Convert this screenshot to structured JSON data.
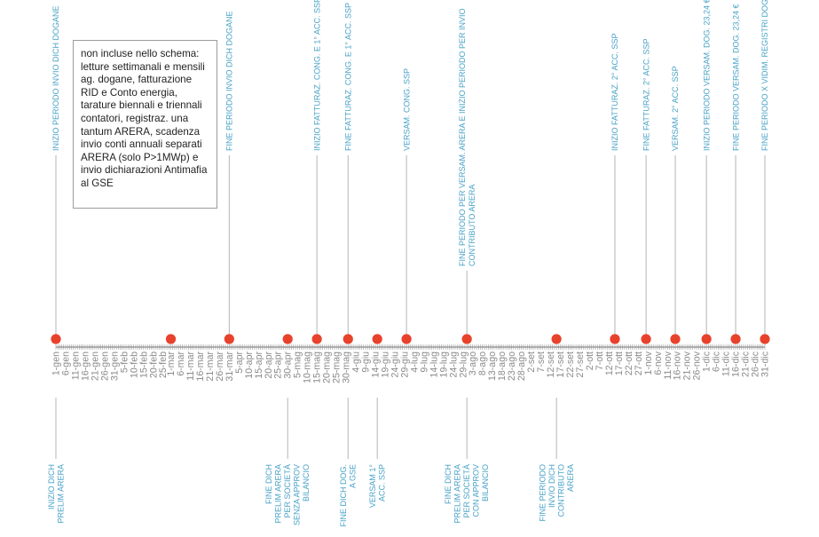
{
  "note": "non incluse nello schema: letture settimanali e mensili ag. dogane, fatturazione RID e Conto energia, tarature biennali e triennali contatori, registraz. una tantum ARERA, scadenza invio conti annuali separati ARERA (solo P>1MWp) e invio dichiarazioni Antimafia al GSE",
  "colors": {
    "axis": "#8a8a8a",
    "tick_label": "#8a8a8a",
    "event_label": "#4aa3c7",
    "connector": "#b5b5b5",
    "marker": "#e8422c",
    "note_border": "#9c9c9c"
  },
  "ticks": [
    "1-gen",
    "6-gen",
    "11-gen",
    "16-gen",
    "21-gen",
    "26-gen",
    "31-gen",
    "5-feb",
    "10-feb",
    "15-feb",
    "20-feb",
    "25-feb",
    "1-mar",
    "6-mar",
    "11-mar",
    "16-mar",
    "21-mar",
    "26-mar",
    "31-mar",
    "5-apr",
    "10-apr",
    "15-apr",
    "20-apr",
    "25-apr",
    "30-apr",
    "5-mag",
    "10-mag",
    "15-mag",
    "20-mag",
    "25-mag",
    "30-mag",
    "4-giu",
    "9-giu",
    "14-giu",
    "19-giu",
    "24-giu",
    "29-giu",
    "4-lug",
    "9-lug",
    "14-lug",
    "19-lug",
    "24-lug",
    "29-lug",
    "3-ago",
    "8-ago",
    "13-ago",
    "18-ago",
    "23-ago",
    "28-ago",
    "2-set",
    "7-set",
    "12-set",
    "17-set",
    "22-set",
    "27-set",
    "2-ott",
    "7-ott",
    "12-ott",
    "17-ott",
    "22-ott",
    "27-ott",
    "1-nov",
    "6-nov",
    "11-nov",
    "16-nov",
    "21-nov",
    "26-nov",
    "1-dic",
    "6-dic",
    "11-dic",
    "16-dic",
    "21-dic",
    "26-dic",
    "31-dic"
  ],
  "events": [
    {
      "date": "1-gen",
      "above": "INIZIO PERIODO INVIO DICH DOGANE",
      "below": [
        "INIZIO DICH",
        "PRELIM ARERA"
      ]
    },
    {
      "date": "1-mar",
      "above": "",
      "below": []
    },
    {
      "date": "31-mar",
      "above": "FINE PERIODO INVIO DICH DOGANE",
      "below": []
    },
    {
      "date": "30-apr",
      "above": "",
      "below": [
        "FINE DICH",
        "PRELIM ARERA",
        "PER SOCIETÀ",
        "SENZA APPROV",
        "BILANCIO"
      ]
    },
    {
      "date": "15-mag",
      "above": "INIZIO FATTURAZ. CONG. E 1° ACC. SSP",
      "below": []
    },
    {
      "date": "31-mag",
      "above": "FINE FATTURAZ. CONG. E 1° ACC. SSP",
      "below": [
        "FINE DICH DOG.",
        "A GSE"
      ]
    },
    {
      "date": "15-giu",
      "above": "",
      "below": [
        "VERSAM 1°",
        "ACC. SSP"
      ]
    },
    {
      "date": "30-giu",
      "above": "VERSAM. CONG. SSP",
      "below": []
    },
    {
      "date": "31-lug",
      "above": [
        "FINE PERIODO PER VERSAM. ARERA E INIZIO PERIODO PER INVIO",
        "CONTRIBUTO ARERA"
      ],
      "below": [
        "FINE DICH",
        "PRELIM ARERA",
        "PER SOCIETÀ",
        "CON APPROV",
        "BILANCIO"
      ]
    },
    {
      "date": "15-set",
      "above": "",
      "below": [
        "FINE PERIODO",
        "INVIO DICH",
        "CONTRIBUTO",
        "ARERA"
      ]
    },
    {
      "date": "15-ott",
      "above": "INIZIO FATTURAZ. 2° ACC. SSP",
      "below": []
    },
    {
      "date": "31-ott",
      "above": "FINE FATTURAZ. 2° ACC. SSP",
      "below": []
    },
    {
      "date": "15-nov",
      "above": "VERSAM. 2° ACC. SSP",
      "below": []
    },
    {
      "date": "1-dic",
      "above": "INIZIO PERIODO VERSAM. DOG. 23,24 €",
      "below": []
    },
    {
      "date": "16-dic",
      "above": "FINE PERIODO VERSAM. DOG. 23,24 €",
      "below": []
    },
    {
      "date": "31-dic",
      "above": "FINE PERIODO X VIDIM. REGISTRI DOG.",
      "below": []
    }
  ]
}
